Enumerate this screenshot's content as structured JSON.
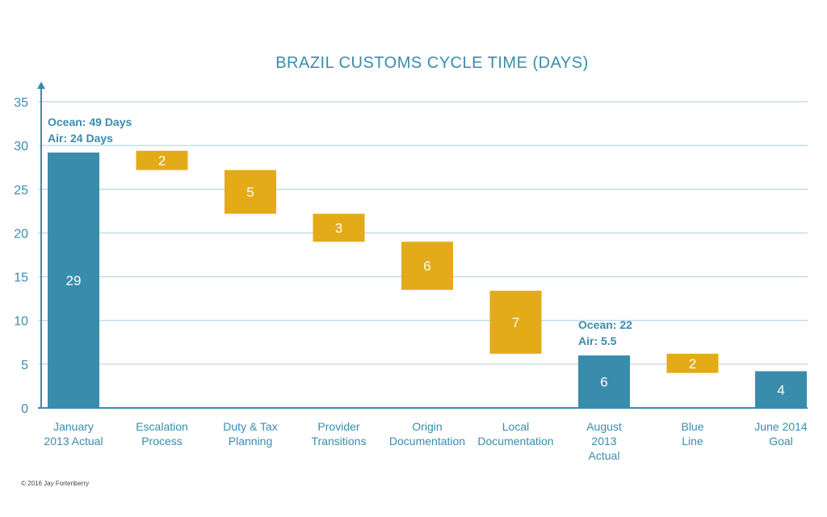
{
  "chart_data": {
    "type": "bar",
    "subtype": "waterfall",
    "title": "BRAZIL CUSTOMS CYCLE TIME (DAYS)",
    "xlabel": "",
    "ylabel": "",
    "ylim": [
      0,
      35
    ],
    "yticks": [
      0,
      5,
      10,
      15,
      20,
      25,
      30,
      35
    ],
    "grid": true,
    "categories": [
      [
        "January",
        "2013 Actual"
      ],
      [
        "Escalation",
        "Process"
      ],
      [
        "Duty & Tax",
        "Planning"
      ],
      [
        "Provider",
        "Transitions"
      ],
      [
        "Origin",
        "Documentation"
      ],
      [
        "Local",
        "Documentation"
      ],
      [
        "August",
        "2013",
        "Actual"
      ],
      [
        "Blue",
        "Line"
      ],
      [
        "June 2014",
        "Goal"
      ]
    ],
    "bars": [
      {
        "kind": "total",
        "base": 0,
        "top": 29.2,
        "label": "29"
      },
      {
        "kind": "step",
        "base": 27.2,
        "top": 29.4,
        "label": "2"
      },
      {
        "kind": "step",
        "base": 22.2,
        "top": 27.2,
        "label": "5"
      },
      {
        "kind": "step",
        "base": 19.0,
        "top": 22.2,
        "label": "3"
      },
      {
        "kind": "step",
        "base": 13.5,
        "top": 19.0,
        "label": "6"
      },
      {
        "kind": "step",
        "base": 6.2,
        "top": 13.4,
        "label": "7"
      },
      {
        "kind": "total",
        "base": 0,
        "top": 6.0,
        "label": "6"
      },
      {
        "kind": "step",
        "base": 4.0,
        "top": 6.2,
        "label": "2"
      },
      {
        "kind": "total",
        "base": 0,
        "top": 4.2,
        "label": "4"
      }
    ],
    "annotations": [
      {
        "bar": 0,
        "lines": [
          "Ocean: 49 Days",
          "Air: 24 Days"
        ]
      },
      {
        "bar": 6,
        "lines": [
          "Ocean: 22",
          "Air: 5.5"
        ]
      }
    ],
    "colors": {
      "total": "#3a8cac",
      "step": "#e3ab17",
      "grid": "#a9cfdf",
      "axis": "#3a8cac",
      "text": "#3a8cac",
      "bar_label": "#ffffff"
    }
  },
  "footer": {
    "copyright": "© 2016 Jay Fortenberry"
  }
}
